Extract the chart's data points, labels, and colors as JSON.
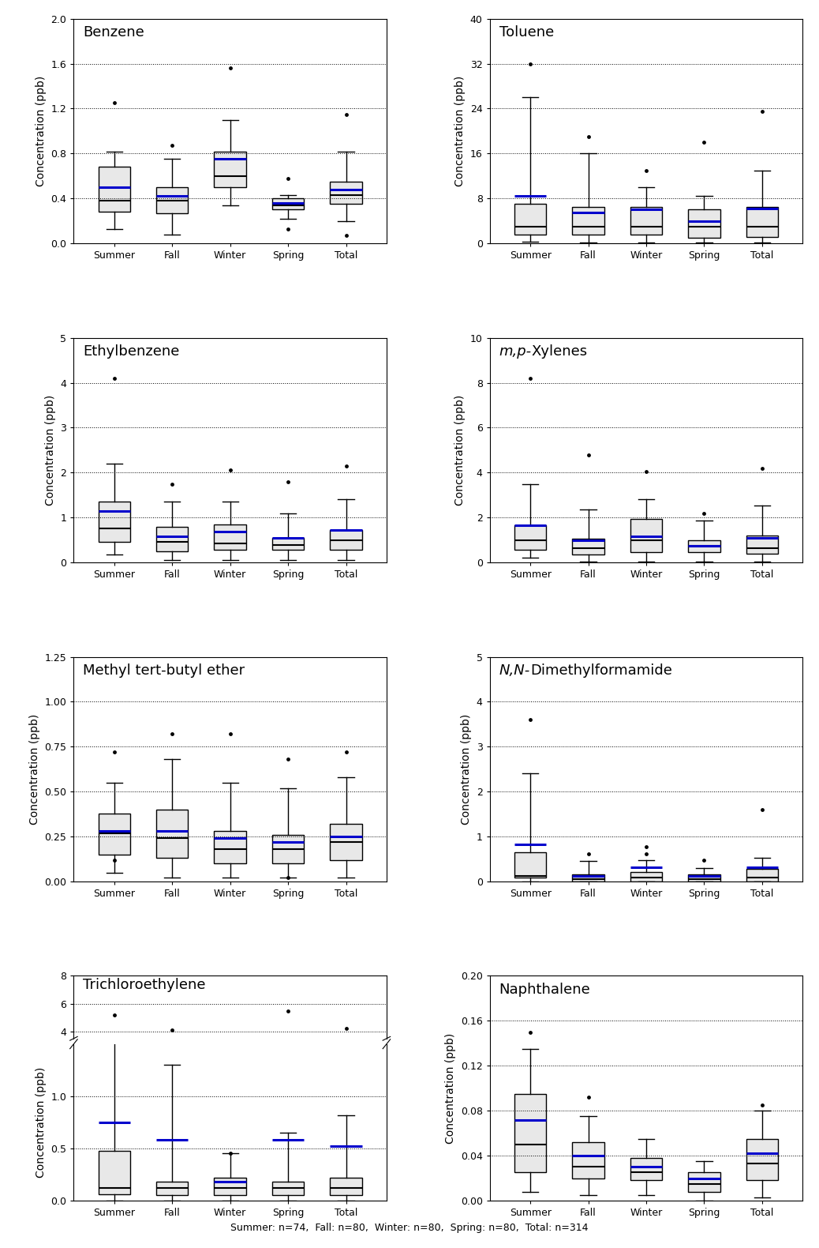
{
  "plots": [
    {
      "title": "Benzene",
      "title_italic": false,
      "ylabel": "Concentration (ppb)",
      "ylim": [
        0,
        2.0
      ],
      "yticks": [
        0.0,
        0.4,
        0.8,
        1.2,
        1.6,
        2.0
      ],
      "seasons": [
        "Summer",
        "Fall",
        "Winter",
        "Spring",
        "Total"
      ],
      "boxes": [
        {
          "q1": 0.28,
          "median": 0.38,
          "q3": 0.68,
          "mean": 0.5,
          "whislo": 0.13,
          "whishi": 0.82,
          "fliers": [
            1.25
          ]
        },
        {
          "q1": 0.27,
          "median": 0.38,
          "q3": 0.5,
          "mean": 0.42,
          "whislo": 0.08,
          "whishi": 0.75,
          "fliers": [
            0.87
          ]
        },
        {
          "q1": 0.5,
          "median": 0.6,
          "q3": 0.82,
          "mean": 0.75,
          "whislo": 0.34,
          "whishi": 1.1,
          "fliers": [
            1.56
          ]
        },
        {
          "q1": 0.3,
          "median": 0.34,
          "q3": 0.4,
          "mean": 0.36,
          "whislo": 0.22,
          "whishi": 0.43,
          "fliers": [
            0.58,
            0.13
          ]
        },
        {
          "q1": 0.35,
          "median": 0.43,
          "q3": 0.55,
          "mean": 0.48,
          "whislo": 0.2,
          "whishi": 0.82,
          "fliers": [
            1.15,
            0.07
          ]
        }
      ]
    },
    {
      "title": "Toluene",
      "title_italic": false,
      "ylabel": "Concentration (ppb)",
      "ylim": [
        0,
        40
      ],
      "yticks": [
        0,
        8,
        16,
        24,
        32,
        40
      ],
      "seasons": [
        "Summer",
        "Fall",
        "Winter",
        "Spring",
        "Total"
      ],
      "boxes": [
        {
          "q1": 1.5,
          "median": 3.0,
          "q3": 7.0,
          "mean": 8.5,
          "whislo": 0.3,
          "whishi": 26.0,
          "fliers": [
            32.0
          ]
        },
        {
          "q1": 1.5,
          "median": 3.0,
          "q3": 6.5,
          "mean": 5.5,
          "whislo": 0.2,
          "whishi": 16.0,
          "fliers": [
            19.0
          ]
        },
        {
          "q1": 1.5,
          "median": 3.0,
          "q3": 6.5,
          "mean": 6.0,
          "whislo": 0.2,
          "whishi": 10.0,
          "fliers": [
            13.0
          ]
        },
        {
          "q1": 1.0,
          "median": 3.0,
          "q3": 6.0,
          "mean": 4.0,
          "whislo": 0.2,
          "whishi": 8.5,
          "fliers": [
            18.0
          ]
        },
        {
          "q1": 1.2,
          "median": 3.0,
          "q3": 6.5,
          "mean": 6.2,
          "whislo": 0.2,
          "whishi": 13.0,
          "fliers": [
            23.5
          ]
        }
      ]
    },
    {
      "title": "Ethylbenzene",
      "title_italic": false,
      "ylabel": "Concentration (ppb)",
      "ylim": [
        0,
        5
      ],
      "yticks": [
        0,
        1,
        2,
        3,
        4,
        5
      ],
      "seasons": [
        "Summer",
        "Fall",
        "Winter",
        "Spring",
        "Total"
      ],
      "boxes": [
        {
          "q1": 0.45,
          "median": 0.75,
          "q3": 1.35,
          "mean": 1.15,
          "whislo": 0.18,
          "whishi": 2.2,
          "fliers": [
            4.1
          ]
        },
        {
          "q1": 0.25,
          "median": 0.45,
          "q3": 0.8,
          "mean": 0.58,
          "whislo": 0.05,
          "whishi": 1.35,
          "fliers": [
            1.75
          ]
        },
        {
          "q1": 0.28,
          "median": 0.42,
          "q3": 0.85,
          "mean": 0.68,
          "whislo": 0.05,
          "whishi": 1.35,
          "fliers": [
            2.05
          ]
        },
        {
          "q1": 0.28,
          "median": 0.38,
          "q3": 0.55,
          "mean": 0.55,
          "whislo": 0.05,
          "whishi": 1.1,
          "fliers": [
            1.8
          ]
        },
        {
          "q1": 0.28,
          "median": 0.5,
          "q3": 0.72,
          "mean": 0.72,
          "whislo": 0.05,
          "whishi": 1.4,
          "fliers": [
            2.15
          ]
        }
      ]
    },
    {
      "title": "m,p-Xylenes",
      "title_italic": true,
      "title_italic_part": "m,p-",
      "title_rest": "Xylenes",
      "ylabel": "Concentration (ppb)",
      "ylim": [
        0,
        10
      ],
      "yticks": [
        0,
        2,
        4,
        6,
        8,
        10
      ],
      "seasons": [
        "Summer",
        "Fall",
        "Winter",
        "Spring",
        "Total"
      ],
      "boxes": [
        {
          "q1": 0.55,
          "median": 1.0,
          "q3": 1.65,
          "mean": 1.65,
          "whislo": 0.22,
          "whishi": 3.5,
          "fliers": [
            8.2
          ]
        },
        {
          "q1": 0.35,
          "median": 0.65,
          "q3": 1.05,
          "mean": 1.0,
          "whislo": 0.05,
          "whishi": 2.35,
          "fliers": [
            4.8
          ]
        },
        {
          "q1": 0.45,
          "median": 1.0,
          "q3": 1.95,
          "mean": 1.15,
          "whislo": 0.05,
          "whishi": 2.8,
          "fliers": [
            4.05
          ]
        },
        {
          "q1": 0.45,
          "median": 0.75,
          "q3": 1.0,
          "mean": 0.75,
          "whislo": 0.05,
          "whishi": 1.85,
          "fliers": [
            2.2
          ]
        },
        {
          "q1": 0.38,
          "median": 0.65,
          "q3": 1.2,
          "mean": 1.1,
          "whislo": 0.05,
          "whishi": 2.55,
          "fliers": [
            4.2
          ]
        }
      ]
    },
    {
      "title": "Methyl tert-butyl ether",
      "title_italic": false,
      "ylabel": "Concentration (ppb)",
      "ylim": [
        0,
        1.25
      ],
      "yticks": [
        0.0,
        0.25,
        0.5,
        0.75,
        1.0,
        1.25
      ],
      "seasons": [
        "Summer",
        "Fall",
        "Winter",
        "Spring",
        "Total"
      ],
      "boxes": [
        {
          "q1": 0.15,
          "median": 0.27,
          "q3": 0.38,
          "mean": 0.28,
          "whislo": 0.05,
          "whishi": 0.55,
          "fliers": [
            0.72,
            0.12
          ]
        },
        {
          "q1": 0.13,
          "median": 0.24,
          "q3": 0.4,
          "mean": 0.28,
          "whislo": 0.02,
          "whishi": 0.68,
          "fliers": [
            0.82
          ]
        },
        {
          "q1": 0.1,
          "median": 0.18,
          "q3": 0.28,
          "mean": 0.24,
          "whislo": 0.02,
          "whishi": 0.55,
          "fliers": [
            0.82
          ]
        },
        {
          "q1": 0.1,
          "median": 0.18,
          "q3": 0.26,
          "mean": 0.22,
          "whislo": 0.02,
          "whishi": 0.52,
          "fliers": [
            0.68,
            0.02
          ]
        },
        {
          "q1": 0.12,
          "median": 0.22,
          "q3": 0.32,
          "mean": 0.25,
          "whislo": 0.02,
          "whishi": 0.58,
          "fliers": [
            0.72
          ]
        }
      ]
    },
    {
      "title": "N,N-Dimethylformamide",
      "title_italic": true,
      "title_italic_part": "N,N-",
      "title_rest": "Dimethylformamide",
      "ylabel": "Concentration (ppb)",
      "ylim": [
        0,
        5
      ],
      "yticks": [
        0,
        1,
        2,
        3,
        4,
        5
      ],
      "seasons": [
        "Summer",
        "Fall",
        "Winter",
        "Spring",
        "Total"
      ],
      "boxes": [
        {
          "q1": 0.08,
          "median": 0.12,
          "q3": 0.65,
          "mean": 0.82,
          "whislo": 0.0,
          "whishi": 2.4,
          "fliers": [
            3.6
          ]
        },
        {
          "q1": 0.0,
          "median": 0.05,
          "q3": 0.15,
          "mean": 0.12,
          "whislo": 0.0,
          "whishi": 0.45,
          "fliers": [
            0.62
          ]
        },
        {
          "q1": 0.0,
          "median": 0.08,
          "q3": 0.22,
          "mean": 0.32,
          "whislo": 0.0,
          "whishi": 0.48,
          "fliers": [
            0.62,
            0.78
          ]
        },
        {
          "q1": 0.0,
          "median": 0.05,
          "q3": 0.15,
          "mean": 0.12,
          "whislo": 0.0,
          "whishi": 0.3,
          "fliers": [
            0.48
          ]
        },
        {
          "q1": 0.0,
          "median": 0.08,
          "q3": 0.28,
          "mean": 0.32,
          "whislo": 0.0,
          "whishi": 0.52,
          "fliers": [
            1.6
          ]
        }
      ]
    },
    {
      "title": "Trichloroethylene",
      "title_italic": false,
      "ylabel": "Concentration (ppb)",
      "ylim_lower": [
        0,
        1.5
      ],
      "ylim_upper": [
        3.5,
        8.0
      ],
      "yticks_lower": [
        0.0,
        0.5,
        1.0
      ],
      "yticks_upper": [
        4.0,
        6.0,
        8.0
      ],
      "broken_axis": true,
      "seasons": [
        "Summer",
        "Fall",
        "Winter",
        "Spring",
        "Total"
      ],
      "boxes": [
        {
          "q1": 0.06,
          "median": 0.12,
          "q3": 0.48,
          "mean": 0.75,
          "whislo": 0.0,
          "whishi": 3.2,
          "fliers": [
            5.2
          ]
        },
        {
          "q1": 0.05,
          "median": 0.12,
          "q3": 0.18,
          "mean": 0.58,
          "whislo": 0.0,
          "whishi": 1.3,
          "fliers": [
            4.1
          ]
        },
        {
          "q1": 0.05,
          "median": 0.12,
          "q3": 0.22,
          "mean": 0.18,
          "whislo": 0.0,
          "whishi": 0.45,
          "fliers": [
            0.45
          ]
        },
        {
          "q1": 0.05,
          "median": 0.12,
          "q3": 0.18,
          "mean": 0.58,
          "whislo": 0.0,
          "whishi": 0.65,
          "fliers": [
            5.5
          ]
        },
        {
          "q1": 0.05,
          "median": 0.12,
          "q3": 0.22,
          "mean": 0.52,
          "whislo": 0.0,
          "whishi": 0.82,
          "fliers": [
            4.2
          ]
        }
      ]
    },
    {
      "title": "Naphthalene",
      "title_italic": false,
      "ylabel": "Concentration (ppb)",
      "ylim": [
        0,
        0.2
      ],
      "yticks": [
        0.0,
        0.04,
        0.08,
        0.12,
        0.16,
        0.2
      ],
      "seasons": [
        "Summer",
        "Fall",
        "Winter",
        "Spring",
        "Total"
      ],
      "boxes": [
        {
          "q1": 0.025,
          "median": 0.05,
          "q3": 0.095,
          "mean": 0.072,
          "whislo": 0.008,
          "whishi": 0.135,
          "fliers": [
            0.15
          ]
        },
        {
          "q1": 0.02,
          "median": 0.03,
          "q3": 0.052,
          "mean": 0.04,
          "whislo": 0.005,
          "whishi": 0.075,
          "fliers": [
            0.092
          ]
        },
        {
          "q1": 0.018,
          "median": 0.025,
          "q3": 0.038,
          "mean": 0.03,
          "whislo": 0.005,
          "whishi": 0.055,
          "fliers": []
        },
        {
          "q1": 0.008,
          "median": 0.015,
          "q3": 0.025,
          "mean": 0.02,
          "whislo": 0.0,
          "whishi": 0.035,
          "fliers": []
        },
        {
          "q1": 0.018,
          "median": 0.033,
          "q3": 0.055,
          "mean": 0.042,
          "whislo": 0.003,
          "whishi": 0.08,
          "fliers": [
            0.085
          ]
        }
      ]
    }
  ],
  "footnote": "Summer: n=74,  Fall: n=80,  Winter: n=80,  Spring: n=80,  Total: n=314",
  "box_facecolor": "#e8e8e8",
  "box_edgecolor": "#000000",
  "mean_color": "#0000cc",
  "median_color": "#000000",
  "flier_color": "#000000",
  "whisker_color": "#000000",
  "title_fontsize": 13,
  "label_fontsize": 10,
  "tick_fontsize": 9,
  "footnote_fontsize": 9
}
